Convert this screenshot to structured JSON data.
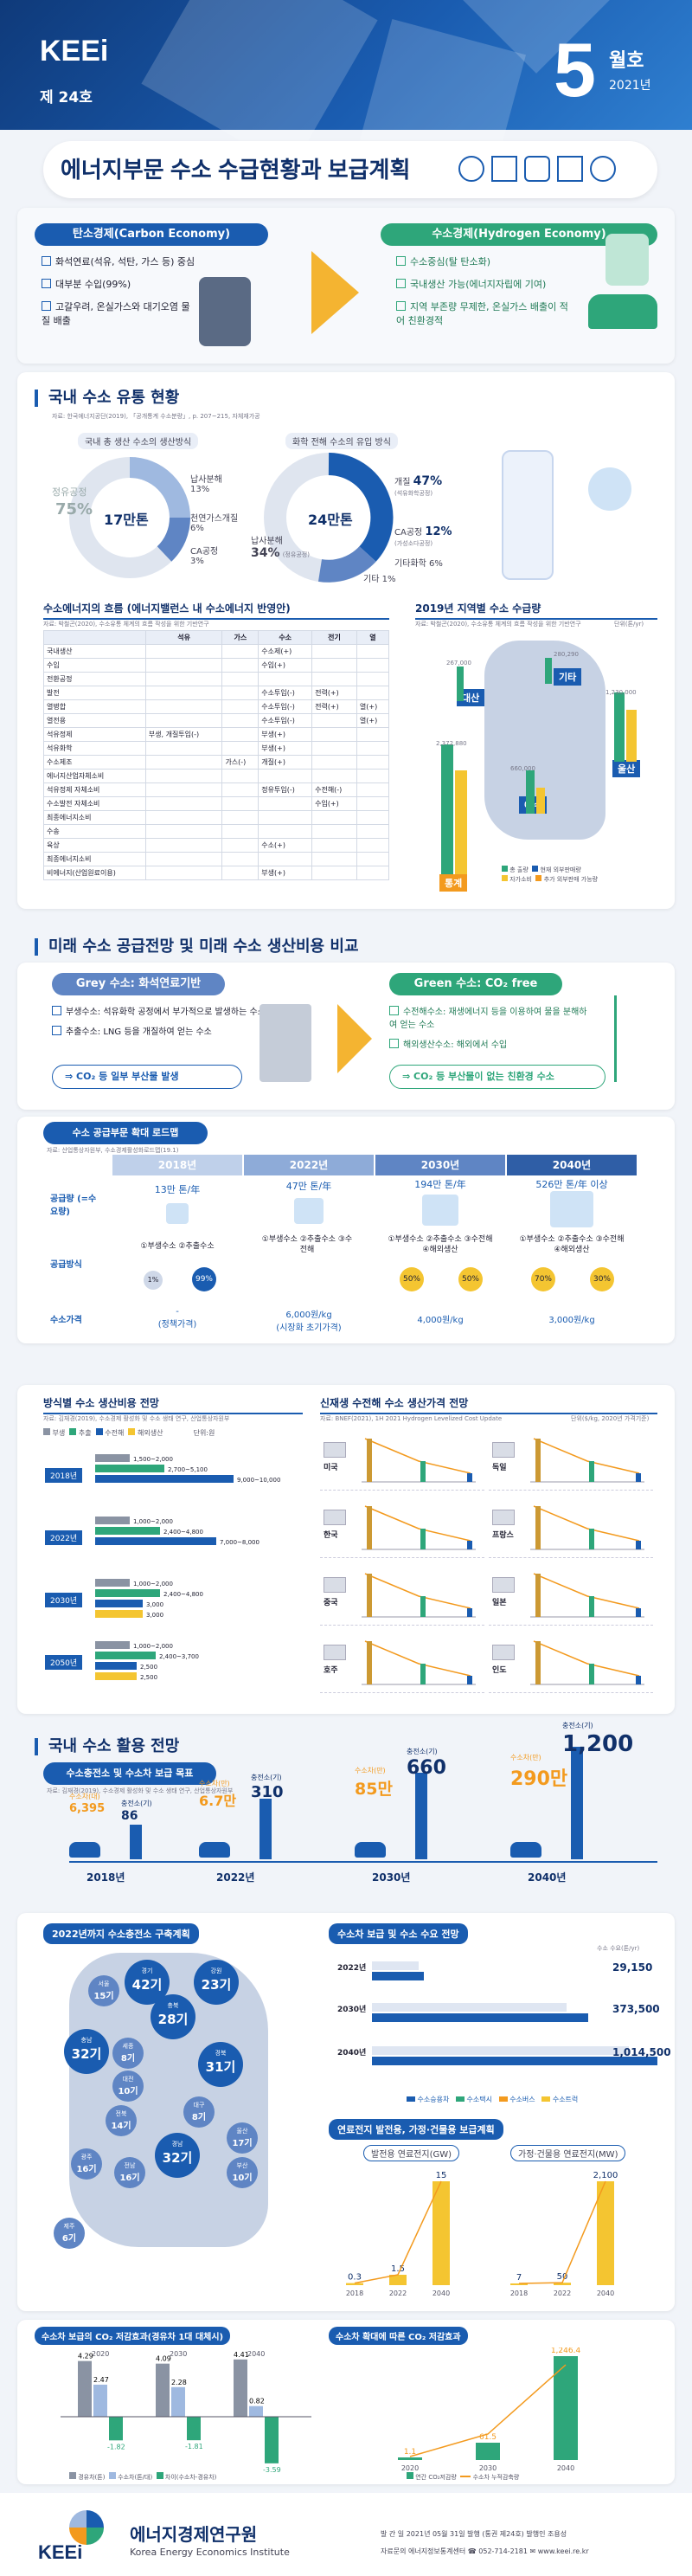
{
  "header": {
    "brand": "KEEi",
    "issue": "제 24호",
    "month_num": "5",
    "month_label": "월호",
    "year": "2021년"
  },
  "title": "에너지부문 수소 수급현황과 보급계획",
  "intro": {
    "carbon_title": "탄소경제(Carbon Economy)",
    "carbon_items": [
      "화석연료(석유, 석탄, 가스 등) 중심",
      "대부분 수입(99%)",
      "고갈우려, 온실가스와 대기오염 물질 배출"
    ],
    "hydrogen_title": "수소경제(Hydrogen Economy)",
    "hydrogen_items": [
      "수소중심(탈 탄소화)",
      "국내생산 가능(에너지자립에 기여)",
      "지역 부존량 무제한, 온실가스 배출이 적어 친환경적"
    ]
  },
  "sec1": {
    "title": "국내 수소 유통 현황",
    "source": "자료: 한국에너지공단(2019), 「공개통계 수소분량」, p. 207~215, 자체재가공",
    "left_caption": "국내 총 생산 수소의 생산방식",
    "right_caption": "화학 전해 수소의 유입 방식",
    "left_total": "17만톤",
    "left_main_label": "정유공정",
    "left_main_val": "75%",
    "left_s1": "납사분해",
    "left_s1v": "13%",
    "left_s2": "천연가스개질",
    "left_s2v": "6%",
    "left_s3": "CA공정",
    "left_s3v": "3%",
    "right_total": "24만톤",
    "right_r1": "개질",
    "right_r1v": "47%",
    "right_r1n": "(석유화학공정)",
    "right_r2": "납사분해",
    "right_r2v": "34%",
    "right_r2n": "(정유공정)",
    "right_r3": "CA공정",
    "right_r3v": "12%",
    "right_r3n": "(가성소다공정)",
    "right_r4": "기타화학",
    "right_r4v": "6%",
    "right_r5": "기타",
    "right_r5v": "1%",
    "flow_title": "수소에너지의 흐름 (에너지밸런스 내 수소에너지 반영안)",
    "flow_source": "자료: 박철곤(2020), 수소유통 체계의 흐름 작성을 위한 기반연구",
    "flow_cols": [
      "석유",
      "가스",
      "수소",
      "전기",
      "열"
    ],
    "flow_rows": [
      [
        "국내생산",
        "",
        "",
        "수소제(+)",
        "",
        ""
      ],
      [
        "수입",
        "",
        "",
        "수입(+)",
        "",
        ""
      ],
      [
        "전환공정",
        "",
        "",
        "",
        "",
        ""
      ],
      [
        "발전",
        "",
        "",
        "수소투입(-)",
        "전력(+)",
        ""
      ],
      [
        "열병합",
        "",
        "",
        "수소투입(-)",
        "전력(+)",
        "열(+)"
      ],
      [
        "열전용",
        "",
        "",
        "수소투입(-)",
        "",
        "열(+)"
      ],
      [
        "석유정제",
        "부생, 개질투입(-)",
        "",
        "부생(+)",
        "",
        ""
      ],
      [
        "석유화학",
        "",
        "",
        "부생(+)",
        "",
        ""
      ],
      [
        "수소제조",
        "",
        "가스(-)",
        "개질(+)",
        "",
        ""
      ],
      [
        "에너지산업자체소비",
        "",
        "",
        "",
        "",
        ""
      ],
      [
        "석유정제 자체소비",
        "",
        "",
        "정유투입(-)",
        "수전해(-)",
        ""
      ],
      [
        "수소발전 자체소비",
        "",
        "",
        "",
        "수입(+)",
        ""
      ],
      [
        "최종에너지소비",
        "",
        "",
        "",
        "",
        ""
      ],
      [
        "수송",
        "",
        "",
        "",
        "",
        ""
      ],
      [
        "육상",
        "",
        "",
        "수소(+)",
        "",
        ""
      ],
      [
        "최종에너지소비",
        "",
        "",
        "",
        "",
        ""
      ],
      [
        "비에너지(산업원료이용)",
        "",
        "",
        "부생(+)",
        "",
        ""
      ]
    ],
    "map_title": "2019년 지역별 수소 수급량",
    "map_source": "자료: 박철곤(2020), 수소유통 체계의 흐름 작성을 위한 기반연구",
    "map_unit": "단위(톤/yr)",
    "regions": [
      {
        "name": "대산",
        "vals": [
          "267,000",
          "161,000"
        ]
      },
      {
        "name": "기타",
        "vals": [
          "280,290",
          "181,220"
        ]
      },
      {
        "name": "울산",
        "vals": [
          "1,230,000",
          "1,059,200"
        ]
      },
      {
        "name": "여수",
        "vals": [
          "660,000",
          "388,510"
        ]
      },
      {
        "name": "통계",
        "vals": [
          "2,372,880",
          "2,052,670"
        ]
      }
    ],
    "map_legend": [
      "총 출량",
      "현재 외부판매량",
      "자가소비",
      "추가 외부판매 가능량"
    ],
    "small_vals": [
      "267,290",
      "140,700",
      "267,870",
      "23,000"
    ]
  },
  "sec2": {
    "title": "미래 수소 공급전망 및 미래 수소 생산비용 비교",
    "grey_title": "Grey 수소: 화석연료기반",
    "grey_items": [
      "부생수소: 석유화학 공정에서 부가적으로 발생하는 수소",
      "추출수소: LNG 등을 개질하여 얻는 수소"
    ],
    "grey_result": "CO₂ 등 일부 부산물 발생",
    "green_title": "Green 수소: CO₂ free",
    "green_items": [
      "수전해수소: 재생에너지 등을 이용하여 물을 분해하여 얻는 수소",
      "해외생산수소: 해외에서 수입"
    ],
    "green_result": "CO₂ 등 부산물이 없는 친환경 수소",
    "roadmap_title": "수소 공급부문 확대 로드맵",
    "roadmap_source": "자료: 산업통상자원부, 수소경제활성화로드맵(19.1)",
    "roadmap_years": [
      "2018년",
      "2022년",
      "2030년",
      "2040년"
    ],
    "row_supply": "공급량 (=수요량)",
    "row_method": "공급방식",
    "row_price": "수소가격",
    "supply": [
      "13만 톤/年",
      "47만 톤/年",
      "194만 톤/年",
      "526만 톤/年 이상"
    ],
    "method": [
      "①부생수소 ②추출수소",
      "①부생수소 ②추출수소 ③수전해",
      "①부생수소 ②추출수소 ③수전해 ④해외생산",
      "①부생수소 ②추출수소 ③수전해 ④해외생산"
    ],
    "method_pct": [
      "1%",
      "99%",
      "50%",
      "50%",
      "70%",
      "30%"
    ],
    "price": [
      "-\n(정책가격)",
      "6,000원/kg\n(시장화 초기가격)",
      "4,000원/kg",
      "3,000원/kg"
    ],
    "prod_title": "방식별 수소 생산비용 전망",
    "prod_source": "자료: 김재경(2019), 수소경제 활성화 및 수소 생태 연구, 산업통상자원부",
    "prod_legend": [
      "부생",
      "추출",
      "수전해",
      "해외생산"
    ],
    "prod_unit": "단위:원",
    "prod_years": [
      "2018년",
      "2022년",
      "2030년",
      "2050년"
    ],
    "prod_vals": [
      [
        "1,500~2,000",
        "2,700~5,100",
        "9,000~10,000",
        ""
      ],
      [
        "1,000~2,000",
        "2,400~4,800",
        "7,000~8,000",
        ""
      ],
      [
        "1,000~2,000",
        "2,400~4,800",
        "3,000",
        "3,000"
      ],
      [
        "1,000~2,000",
        "2,400~3,700",
        "2,500",
        "2,500"
      ]
    ],
    "cost_title": "신재생 수전해 수소 생산가격 전망",
    "cost_source": "자료: BNEF(2021), 1H 2021 Hydrogen Levelized Cost Update",
    "cost_unit": "단위($/kg, 2020년 가격기준)",
    "countries": [
      "미국",
      "독일",
      "한국",
      "프랑스",
      "중국",
      "일본",
      "호주",
      "인도"
    ]
  },
  "sec3": {
    "title": "국내 수소 활용 전망",
    "station_title": "수소충전소 및 수소차 보급 목표",
    "station_source": "자료: 김재경(2019), 수소경제 활성화 및 수소 생태 연구, 산업통상자원부",
    "years": [
      "2018년",
      "2022년",
      "2030년",
      "2040년"
    ],
    "station_labels": [
      "충전소(기)",
      "충전소(기)",
      "충전소(기)",
      "충전소(기)"
    ],
    "stations": [
      "86",
      "310",
      "660",
      "1,200"
    ],
    "car_labels": [
      "수소차(대)",
      "수소차(만)",
      "수소차(만)",
      "수소차(만)"
    ],
    "cars": [
      "6,395",
      "6.7만",
      "85만",
      "290만"
    ],
    "map_title": "2022년까지 수소충전소 구축계획",
    "map_regions": [
      [
        "서울",
        "15기"
      ],
      [
        "경기",
        "42기"
      ],
      [
        "강원",
        "23기"
      ],
      [
        "충북",
        "28기"
      ],
      [
        "충남",
        "32기"
      ],
      [
        "세종",
        "8기"
      ],
      [
        "대전",
        "10기"
      ],
      [
        "경북",
        "31기"
      ],
      [
        "전북",
        "14기"
      ],
      [
        "대구",
        "8기"
      ],
      [
        "울산",
        "17기"
      ],
      [
        "부산",
        "10기"
      ],
      [
        "경남",
        "32기"
      ],
      [
        "광주",
        "16기"
      ],
      [
        "전남",
        "16기"
      ],
      [
        "제주",
        "6기"
      ]
    ],
    "demand_title": "수소차 보급 및 수소 수요 전망",
    "demand_unit": "수소 수요(톤/yr)",
    "demand_years": [
      "2022년",
      "2030년",
      "2040년"
    ],
    "demand_vals": [
      "29,150",
      "373,500",
      "1,014,500"
    ],
    "demand_legend": [
      "수소승용차",
      "수소택시",
      "수소버스",
      "수소트럭"
    ],
    "power_title": "연료전지 발전용, 가정·건물용 보급계획",
    "power_left": "발전용 연료전지(GW)",
    "power_right": "가정·건물용 연료전지(MW)",
    "power_gw": [
      0.3,
      1.5,
      15
    ],
    "power_gw_labels": [
      "0.3",
      "1.5",
      "15"
    ],
    "power_mw": [
      7,
      50,
      2100
    ],
    "power_mw_labels": [
      "7",
      "50",
      "2,100"
    ],
    "power_years": [
      "2018",
      "2022",
      "2040"
    ],
    "co2_title": "수소차 보급의 CO₂ 저감효과(경유차 1대 대체시)",
    "co2_vals": [
      "4.29",
      "2.47",
      "4.09",
      "2.28",
      "4.41",
      "0.82"
    ],
    "co2_neg": [
      "-1.82",
      "-1.81",
      "-3.59"
    ],
    "co2_years": [
      "2020",
      "2030",
      "2040"
    ],
    "co2_legend": [
      "경유차(톤)",
      "수소차(톤/대)",
      "차이(수소차-경유차)"
    ],
    "co2b_title": "수소차 확대에 따른 CO₂ 저감효과",
    "co2b_vals": [
      "1.1",
      "61.5",
      "1,246.4"
    ],
    "co2b_years": [
      "2020",
      "2030",
      "2040"
    ],
    "co2b_legend": [
      "연간 CO₂저감량",
      "수소차 누적감축량"
    ]
  },
  "footer": {
    "org": "에너지경제연구원",
    "org_en": "Korea Energy Economics Institute",
    "pub": "발 간 일  2021년 05월 31일 발행 (통권 제24호)  발행인  조용성",
    "contact": "자료문의  에너지정보통계센터  ☎ 052-714-2181  ✉ www.keei.re.kr"
  },
  "colors": {
    "navy": "#10306a",
    "blue": "#1a5cb0",
    "green": "#2ea67a",
    "orange": "#f39a1e",
    "yellow": "#f4c531",
    "grey": "#8a93a3",
    "lightblue": "#9fb9e0"
  }
}
